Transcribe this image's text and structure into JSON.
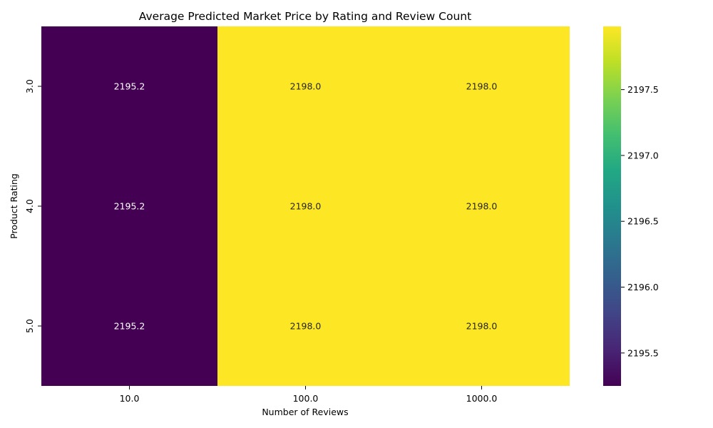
{
  "chart_data": {
    "type": "heatmap",
    "title": "Average Predicted Market Price by Rating and Review Count",
    "xlabel": "Number of Reviews",
    "ylabel": "Product Rating",
    "x_categories": [
      "10.0",
      "100.0",
      "1000.0"
    ],
    "y_categories": [
      "3.0",
      "4.0",
      "5.0"
    ],
    "values": [
      [
        2195.2,
        2198.0,
        2198.0
      ],
      [
        2195.2,
        2198.0,
        2198.0
      ],
      [
        2195.2,
        2198.0,
        2198.0
      ]
    ],
    "annotations": [
      [
        "2195.2",
        "2198.0",
        "2198.0"
      ],
      [
        "2195.2",
        "2198.0",
        "2198.0"
      ],
      [
        "2195.2",
        "2198.0",
        "2198.0"
      ]
    ],
    "colormap": "viridis",
    "color_range": [
      2195.25,
      2197.98
    ],
    "colorbar_ticks": [
      "2195.5",
      "2196.0",
      "2196.5",
      "2197.0",
      "2197.5"
    ],
    "colors": {
      "low": "#440154",
      "high": "#fde725"
    }
  }
}
